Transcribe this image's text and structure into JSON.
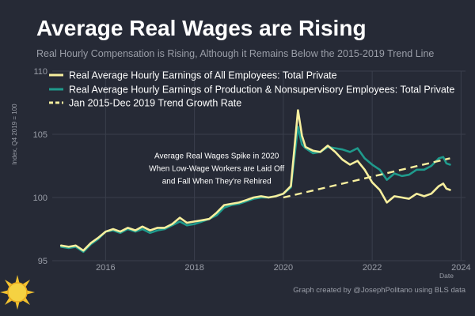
{
  "colors": {
    "background": "#262a36",
    "all_employees": "#f7ef9e",
    "production": "#1f9a8c",
    "trend": "#f7ef9e",
    "grid": "#3a3f4c",
    "text": "#ffffff",
    "muted": "#9a9ea8"
  },
  "header": {
    "title": "Average Real Wages are Rising",
    "subtitle": "Real Hourly Compensation is Rising, Although it Remains Below the 2015-2019 Trend Line"
  },
  "footer": {
    "credit": "Graph created by @JosephPolitano using BLS data",
    "sun_icon": "sun-icon"
  },
  "chart_data": {
    "type": "line",
    "ylabel": "Index, Q4 2019 = 100",
    "xlabel": "Date",
    "xlim": [
      2014.8,
      2024.1
    ],
    "ylim": [
      95,
      110
    ],
    "x_ticks": [
      2016,
      2018,
      2020,
      2022,
      2024
    ],
    "x_tick_labels": [
      "2016",
      "2018",
      "2020",
      "2022",
      "2024"
    ],
    "y_ticks": [
      95,
      100,
      105,
      110
    ],
    "y_tick_labels": [
      "95",
      "100",
      "105",
      "110"
    ],
    "grid": true,
    "legend_position": "top",
    "annotation": {
      "lines": [
        "Average Real Wages Spike in 2020",
        "When Low-Wage Workers are Laid Off",
        "and Fall When They're Rehired"
      ],
      "x": 2018.5,
      "y": 103.1
    },
    "series": [
      {
        "name": "Real Average Hourly Earnings of All Employees: Total Private",
        "style": "solid",
        "points": [
          [
            2015.0,
            96.2
          ],
          [
            2015.17,
            96.1
          ],
          [
            2015.33,
            96.2
          ],
          [
            2015.5,
            95.8
          ],
          [
            2015.67,
            96.4
          ],
          [
            2015.83,
            96.8
          ],
          [
            2016.0,
            97.3
          ],
          [
            2016.17,
            97.5
          ],
          [
            2016.33,
            97.3
          ],
          [
            2016.5,
            97.6
          ],
          [
            2016.67,
            97.4
          ],
          [
            2016.83,
            97.7
          ],
          [
            2017.0,
            97.4
          ],
          [
            2017.17,
            97.6
          ],
          [
            2017.33,
            97.6
          ],
          [
            2017.5,
            97.9
          ],
          [
            2017.67,
            98.4
          ],
          [
            2017.83,
            98.0
          ],
          [
            2018.0,
            98.1
          ],
          [
            2018.17,
            98.2
          ],
          [
            2018.33,
            98.3
          ],
          [
            2018.5,
            98.8
          ],
          [
            2018.67,
            99.4
          ],
          [
            2018.83,
            99.5
          ],
          [
            2019.0,
            99.6
          ],
          [
            2019.17,
            99.8
          ],
          [
            2019.33,
            100.0
          ],
          [
            2019.5,
            100.1
          ],
          [
            2019.67,
            100.0
          ],
          [
            2019.83,
            100.1
          ],
          [
            2020.0,
            100.3
          ],
          [
            2020.17,
            100.9
          ],
          [
            2020.33,
            106.9
          ],
          [
            2020.42,
            104.9
          ],
          [
            2020.5,
            104.0
          ],
          [
            2020.67,
            103.7
          ],
          [
            2020.83,
            103.6
          ],
          [
            2021.0,
            104.1
          ],
          [
            2021.17,
            103.6
          ],
          [
            2021.33,
            103.0
          ],
          [
            2021.5,
            102.6
          ],
          [
            2021.67,
            102.9
          ],
          [
            2021.83,
            102.2
          ],
          [
            2022.0,
            101.2
          ],
          [
            2022.17,
            100.6
          ],
          [
            2022.33,
            99.6
          ],
          [
            2022.5,
            100.1
          ],
          [
            2022.67,
            100.0
          ],
          [
            2022.83,
            99.9
          ],
          [
            2023.0,
            100.3
          ],
          [
            2023.17,
            100.1
          ],
          [
            2023.33,
            100.3
          ],
          [
            2023.5,
            100.9
          ],
          [
            2023.6,
            101.1
          ],
          [
            2023.67,
            100.7
          ],
          [
            2023.75,
            100.6
          ]
        ]
      },
      {
        "name": "Real Average Hourly Earnings of Production & Nonsupervisory Employees: Total Private",
        "style": "solid",
        "points": [
          [
            2015.0,
            96.1
          ],
          [
            2015.17,
            96.0
          ],
          [
            2015.33,
            96.1
          ],
          [
            2015.5,
            95.7
          ],
          [
            2015.67,
            96.3
          ],
          [
            2015.83,
            96.7
          ],
          [
            2016.0,
            97.3
          ],
          [
            2016.17,
            97.4
          ],
          [
            2016.33,
            97.2
          ],
          [
            2016.5,
            97.5
          ],
          [
            2016.67,
            97.3
          ],
          [
            2016.83,
            97.5
          ],
          [
            2017.0,
            97.2
          ],
          [
            2017.17,
            97.4
          ],
          [
            2017.33,
            97.5
          ],
          [
            2017.5,
            97.8
          ],
          [
            2017.67,
            98.1
          ],
          [
            2017.83,
            97.8
          ],
          [
            2018.0,
            97.9
          ],
          [
            2018.17,
            98.1
          ],
          [
            2018.33,
            98.3
          ],
          [
            2018.5,
            98.6
          ],
          [
            2018.67,
            99.2
          ],
          [
            2018.83,
            99.4
          ],
          [
            2019.0,
            99.5
          ],
          [
            2019.17,
            99.7
          ],
          [
            2019.33,
            99.9
          ],
          [
            2019.5,
            100.0
          ],
          [
            2019.67,
            100.0
          ],
          [
            2019.83,
            100.1
          ],
          [
            2020.0,
            100.3
          ],
          [
            2020.17,
            100.8
          ],
          [
            2020.33,
            105.6
          ],
          [
            2020.42,
            104.2
          ],
          [
            2020.5,
            103.9
          ],
          [
            2020.67,
            103.5
          ],
          [
            2020.83,
            103.6
          ],
          [
            2021.0,
            104.0
          ],
          [
            2021.17,
            103.9
          ],
          [
            2021.33,
            103.8
          ],
          [
            2021.5,
            103.6
          ],
          [
            2021.67,
            103.9
          ],
          [
            2021.83,
            103.1
          ],
          [
            2022.0,
            102.6
          ],
          [
            2022.17,
            102.2
          ],
          [
            2022.33,
            101.4
          ],
          [
            2022.5,
            101.9
          ],
          [
            2022.67,
            101.7
          ],
          [
            2022.83,
            101.8
          ],
          [
            2023.0,
            102.2
          ],
          [
            2023.17,
            102.2
          ],
          [
            2023.33,
            102.5
          ],
          [
            2023.5,
            103.1
          ],
          [
            2023.6,
            103.2
          ],
          [
            2023.67,
            102.7
          ],
          [
            2023.75,
            102.6
          ]
        ]
      },
      {
        "name": "Jan 2015-Dec 2019 Trend Growth Rate",
        "style": "dashed",
        "points": [
          [
            2020.0,
            100.0
          ],
          [
            2023.75,
            103.1
          ]
        ]
      }
    ]
  }
}
